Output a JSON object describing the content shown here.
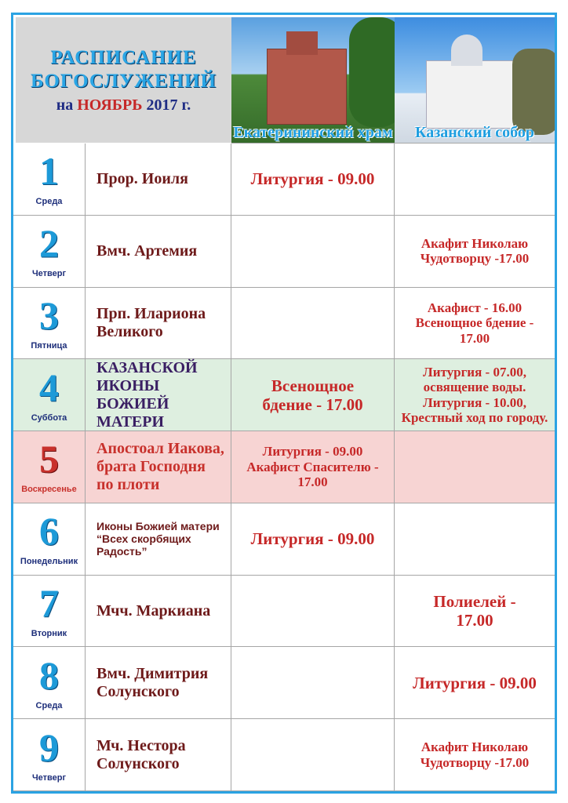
{
  "header": {
    "title": [
      "РАСПИСАНИЕ",
      "БОГОСЛУЖЕНИЙ"
    ],
    "prefix": "на",
    "month": "НОЯБРЬ",
    "year": "2017 г.",
    "columns": [
      "Екатерининский храм",
      "Казанский собор"
    ]
  },
  "table": {
    "rows": [
      {
        "day": "1",
        "weekday": "Среда",
        "saint": [
          "Прор. Иоиля"
        ],
        "ekaterininsky": [
          "Литургия - 09.00"
        ]
      },
      {
        "day": "2",
        "weekday": "Четверг",
        "saint": [
          "Вмч. Артемия"
        ],
        "kazansky": [
          "Акафит Николаю",
          "Чудотворцу -17.00"
        ]
      },
      {
        "day": "3",
        "weekday": "Пятница",
        "saint": [
          "Прп. Илариона",
          "Великого"
        ],
        "kazansky": [
          "Акафист - 16.00",
          "Всенощное бдение -",
          "17.00"
        ]
      },
      {
        "day": "4",
        "weekday": "Суббота",
        "saint": [
          "КАЗАНСКОЙ",
          "ИКОНЫ БОЖИЕЙ",
          "МАТЕРИ"
        ],
        "ekaterininsky": [
          "Всенощное",
          "бдение - 17.00"
        ],
        "kazansky": [
          "Литургия - 07.00,",
          "освящение воды.",
          "Литургия - 10.00,",
          "Крестный ход по городу."
        ]
      },
      {
        "day": "5",
        "weekday": "Воскресенье",
        "saint": [
          "Апостоал Иакова,",
          "брата Господня",
          "по плоти"
        ],
        "ekaterininsky": [
          "Литургия - 09.00",
          "Акафист Спасителю -",
          "17.00"
        ]
      },
      {
        "day": "6",
        "weekday": "Понедельник",
        "saint": [
          "Иконы Божией матери",
          "“Всех скорбящих",
          "Радость”"
        ],
        "ekaterininsky": [
          "Литургия - 09.00"
        ]
      },
      {
        "day": "7",
        "weekday": "Вторник",
        "saint": [
          "Мчч. Маркиана"
        ],
        "kazansky": [
          "Полиелей -",
          "17.00"
        ]
      },
      {
        "day": "8",
        "weekday": "Среда",
        "saint": [
          "Вмч. Димитрия",
          "Солунского"
        ],
        "kazansky": [
          "Литургия - 09.00"
        ]
      },
      {
        "day": "9",
        "weekday": "Четверг",
        "saint": [
          "Мч. Нестора",
          "Солунского"
        ],
        "kazansky": [
          "Акафит Николаю",
          "Чудотворцу -17.00"
        ]
      }
    ]
  }
}
